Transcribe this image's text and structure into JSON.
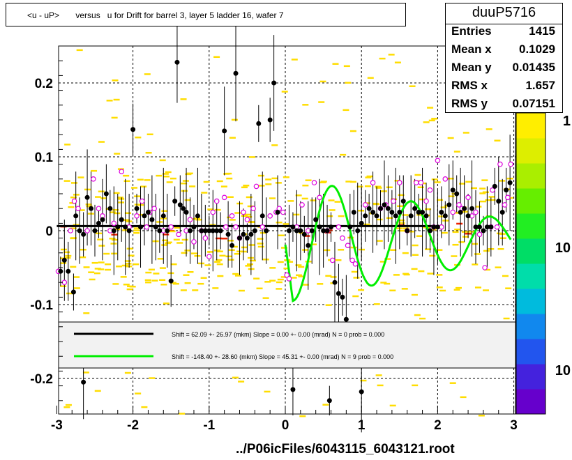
{
  "chart_data": {
    "type": "scatter",
    "title": "<u - uP>       versus   u for Drift for barrel 3, layer 5 ladder 16, wafer 7",
    "xlim": [
      -3,
      3
    ],
    "ylim": [
      -0.25,
      0.25
    ],
    "x_ticks": [
      "-3",
      "-2",
      "-1",
      "0",
      "1",
      "2",
      "3"
    ],
    "y_ticks": [
      "0.2",
      "0.1",
      "0",
      "-0.1",
      "-0.2"
    ],
    "grid": true,
    "stats": {
      "name": "duuP5716",
      "rows": [
        {
          "key": "Entries",
          "value": "1415"
        },
        {
          "key": "Mean x",
          "value": "0.1029"
        },
        {
          "key": "Mean y",
          "value": "0.01435"
        },
        {
          "key": "RMS x",
          "value": "1.657"
        },
        {
          "key": "RMS y",
          "value": "0.07151"
        }
      ]
    },
    "palette_labels": [
      "1",
      "10",
      "10"
    ],
    "legend": [
      {
        "text": "Shift =    62.09 +- 26.97 (mkm) Slope =     0.00 +- 0.00 (mrad)  N = 0 prob = 0.000",
        "color": "#000000"
      },
      {
        "text": "Shift =  -148.40 +- 28.60 (mkm) Slope =    45.31 +- 0.00 (mrad)  N = 9 prob = 0.000",
        "color": "#00ee00"
      }
    ],
    "footer": "../P06icFiles/6043115_6043121.root",
    "black_points": [
      [
        -2.95,
        -0.055
      ],
      [
        -2.9,
        -0.04
      ],
      [
        -2.85,
        -0.055
      ],
      [
        -2.78,
        -0.083
      ],
      [
        -2.75,
        0.02
      ],
      [
        -2.7,
        0.0
      ],
      [
        -2.65,
        -0.005
      ],
      [
        -2.6,
        0.045
      ],
      [
        -2.55,
        0.03
      ],
      [
        -2.5,
        0.0
      ],
      [
        -2.45,
        0.01
      ],
      [
        -2.4,
        0.015
      ],
      [
        -2.35,
        0.05
      ],
      [
        -2.3,
        0.03
      ],
      [
        -2.25,
        0.0
      ],
      [
        -2.2,
        0.005
      ],
      [
        -2.15,
        0.015
      ],
      [
        -2.1,
        0.005
      ],
      [
        -2.05,
        0.0
      ],
      [
        -2.0,
        0.137
      ],
      [
        -1.95,
        0.03
      ],
      [
        -1.9,
        0.005
      ],
      [
        -1.85,
        0.02
      ],
      [
        -1.8,
        0.025
      ],
      [
        -1.75,
        0.015
      ],
      [
        -1.7,
        0.005
      ],
      [
        -1.65,
        0.0
      ],
      [
        -1.6,
        0.02
      ],
      [
        -1.55,
        0.0
      ],
      [
        -1.5,
        -0.068
      ],
      [
        -1.45,
        0.04
      ],
      [
        -1.42,
        0.228
      ],
      [
        -1.38,
        0.035
      ],
      [
        -1.34,
        0.03
      ],
      [
        -1.3,
        0.025
      ],
      [
        -1.25,
        0.0
      ],
      [
        -1.2,
        0.005
      ],
      [
        -1.15,
        0.02
      ],
      [
        -1.1,
        0.0
      ],
      [
        -1.05,
        0.0
      ],
      [
        -1.0,
        0.0
      ],
      [
        -0.95,
        0.0
      ],
      [
        -0.9,
        0.0
      ],
      [
        -0.85,
        0.0
      ],
      [
        -0.8,
        0.135
      ],
      [
        -0.75,
        -0.005
      ],
      [
        -0.7,
        -0.02
      ],
      [
        -0.65,
        0.213
      ],
      [
        -0.6,
        -0.01
      ],
      [
        -0.55,
        -0.005
      ],
      [
        -0.5,
        -0.01
      ],
      [
        -0.45,
        -0.005
      ],
      [
        -0.4,
        0.0
      ],
      [
        -0.35,
        0.145
      ],
      [
        -0.3,
        0.02
      ],
      [
        -0.25,
        0.0
      ],
      [
        -0.2,
        0.15
      ],
      [
        -0.15,
        0.2
      ],
      [
        -0.1,
        0.025
      ],
      [
        0.05,
        0.0
      ],
      [
        0.1,
        0.005
      ],
      [
        0.15,
        0.0
      ],
      [
        0.2,
        0.0
      ],
      [
        0.25,
        -0.005
      ],
      [
        0.3,
        -0.02
      ],
      [
        0.35,
        0.0
      ],
      [
        0.4,
        0.015
      ],
      [
        0.45,
        0.005
      ],
      [
        0.5,
        0.0
      ],
      [
        0.55,
        0.0
      ],
      [
        0.6,
        0.005
      ],
      [
        0.65,
        -0.07
      ],
      [
        0.7,
        -0.085
      ],
      [
        0.75,
        -0.09
      ],
      [
        0.8,
        -0.12
      ],
      [
        0.85,
        0.005
      ],
      [
        0.9,
        0.025
      ],
      [
        0.95,
        0.0
      ],
      [
        1.0,
        0.01
      ],
      [
        1.05,
        0.02
      ],
      [
        1.1,
        0.03
      ],
      [
        1.15,
        0.025
      ],
      [
        1.2,
        0.02
      ],
      [
        1.25,
        0.03
      ],
      [
        1.3,
        0.035
      ],
      [
        1.35,
        0.03
      ],
      [
        1.4,
        0.025
      ],
      [
        1.45,
        0.02
      ],
      [
        1.5,
        0.025
      ],
      [
        1.55,
        0.04
      ],
      [
        1.6,
        0.0
      ],
      [
        1.65,
        0.02
      ],
      [
        1.7,
        0.03
      ],
      [
        1.75,
        0.025
      ],
      [
        1.8,
        0.025
      ],
      [
        1.85,
        0.02
      ],
      [
        1.9,
        0.0
      ],
      [
        1.95,
        0.005
      ],
      [
        2.0,
        0.005
      ],
      [
        2.05,
        0.025
      ],
      [
        2.1,
        0.02
      ],
      [
        2.15,
        0.035
      ],
      [
        2.2,
        0.055
      ],
      [
        2.25,
        0.05
      ],
      [
        2.3,
        0.025
      ],
      [
        2.35,
        0.03
      ],
      [
        2.4,
        0.02
      ],
      [
        2.45,
        0.03
      ],
      [
        2.5,
        0.005
      ],
      [
        2.55,
        0.005
      ],
      [
        2.6,
        0.0
      ],
      [
        2.65,
        0.005
      ],
      [
        2.7,
        0.005
      ],
      [
        2.75,
        0.06
      ],
      [
        2.8,
        0.04
      ],
      [
        2.85,
        0.025
      ],
      [
        2.9,
        0.055
      ],
      [
        2.95,
        0.065
      ],
      [
        -2.65,
        -0.205
      ],
      [
        0.1,
        -0.215
      ],
      [
        0.58,
        -0.23
      ],
      [
        1.0,
        -0.218
      ]
    ],
    "magenta_points": [
      [
        -2.98,
        -0.055
      ],
      [
        -2.9,
        -0.07
      ],
      [
        -2.82,
        0.0
      ],
      [
        -2.77,
        0.04
      ],
      [
        -2.72,
        0.03
      ],
      [
        -2.6,
        0.0
      ],
      [
        -2.52,
        0.07
      ],
      [
        -2.45,
        0.03
      ],
      [
        -2.4,
        0.02
      ],
      [
        -2.3,
        0.0
      ],
      [
        -2.25,
        0.01
      ],
      [
        -2.15,
        0.08
      ],
      [
        -2.05,
        0.005
      ],
      [
        -1.95,
        0.02
      ],
      [
        -1.88,
        0.04
      ],
      [
        -1.82,
        0.005
      ],
      [
        -1.78,
        0.025
      ],
      [
        -1.72,
        0.03
      ],
      [
        -1.6,
        0.0
      ],
      [
        -1.5,
        0.005
      ],
      [
        -1.4,
        -0.005
      ],
      [
        -1.3,
        0.0
      ],
      [
        -1.25,
        0.015
      ],
      [
        -1.2,
        -0.015
      ],
      [
        -1.1,
        0.0
      ],
      [
        -1.05,
        -0.01
      ],
      [
        -1.0,
        -0.035
      ],
      [
        -0.95,
        0.025
      ],
      [
        -0.9,
        0.04
      ],
      [
        -0.8,
        0.045
      ],
      [
        -0.78,
        0.005
      ],
      [
        -0.7,
        0.02
      ],
      [
        -0.65,
        0.005
      ],
      [
        -0.6,
        -0.01
      ],
      [
        -0.55,
        0.025
      ],
      [
        -0.5,
        0.015
      ],
      [
        -0.42,
        0.03
      ],
      [
        -0.38,
        0.06
      ],
      [
        -0.3,
        0.005
      ],
      [
        -0.2,
        0.02
      ],
      [
        -0.12,
        0.025
      ],
      [
        -0.08,
        0.03
      ],
      [
        -0.03,
        0.025
      ],
      [
        0.02,
        -0.06
      ],
      [
        0.05,
        -0.065
      ],
      [
        0.15,
        0.005
      ],
      [
        0.22,
        0.035
      ],
      [
        0.3,
        0.0
      ],
      [
        0.38,
        0.065
      ],
      [
        0.45,
        0.045
      ],
      [
        0.55,
        0.0
      ],
      [
        0.62,
        -0.04
      ],
      [
        0.7,
        0.005
      ],
      [
        0.75,
        -0.01
      ],
      [
        0.82,
        -0.02
      ],
      [
        0.88,
        -0.04
      ],
      [
        0.92,
        -0.045
      ],
      [
        1.05,
        0.035
      ],
      [
        1.15,
        0.065
      ],
      [
        1.25,
        0.03
      ],
      [
        1.32,
        0.035
      ],
      [
        1.42,
        0.04
      ],
      [
        1.5,
        0.065
      ],
      [
        1.6,
        0.0
      ],
      [
        1.72,
        0.065
      ],
      [
        1.78,
        0.065
      ],
      [
        1.85,
        0.04
      ],
      [
        1.9,
        0.055
      ],
      [
        1.95,
        0.005
      ],
      [
        2.0,
        0.095
      ],
      [
        2.05,
        0.005
      ],
      [
        2.1,
        0.07
      ],
      [
        2.2,
        0.025
      ],
      [
        2.28,
        0.035
      ],
      [
        2.32,
        0.03
      ],
      [
        2.4,
        0.045
      ],
      [
        2.45,
        0.02
      ],
      [
        2.5,
        0.025
      ],
      [
        2.55,
        -0.005
      ],
      [
        2.62,
        -0.05
      ],
      [
        2.7,
        0.005
      ],
      [
        2.72,
        0.055
      ],
      [
        2.78,
        0.005
      ],
      [
        2.82,
        0.09
      ],
      [
        2.88,
        0.035
      ],
      [
        2.92,
        0.045
      ],
      [
        2.96,
        0.09
      ]
    ],
    "fit_lines": [
      {
        "type": "flat",
        "y": 0.0062,
        "x": [
          -3,
          1.95
        ],
        "color": "#000000"
      },
      {
        "type": "sine",
        "x": [
          0.0,
          2.98
        ],
        "color": "#00ee00"
      }
    ]
  }
}
